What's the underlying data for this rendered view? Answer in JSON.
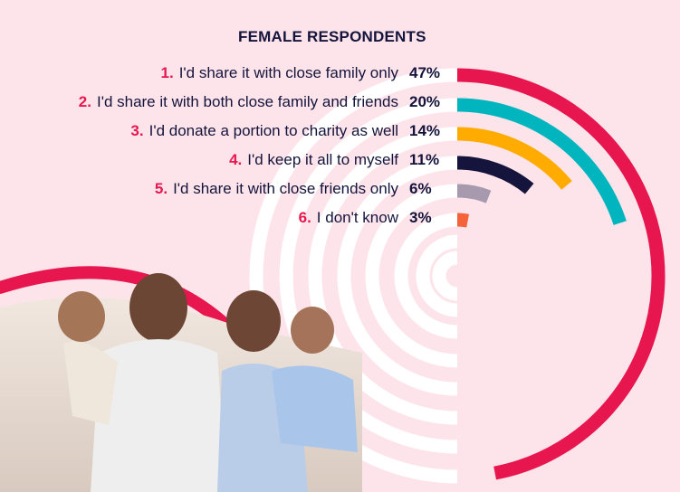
{
  "chart_data": {
    "type": "radial-bar",
    "title": "FEMALE RESPONDENTS",
    "max_value": 50,
    "categories": [
      {
        "rank": "1.",
        "label": "I'd share it with close family only",
        "value": 47,
        "value_label": "47%",
        "color": "#e8164f"
      },
      {
        "rank": "2.",
        "label": "I'd share it with both close family and friends",
        "value": 20,
        "value_label": "20%",
        "color": "#00b5bd"
      },
      {
        "rank": "3.",
        "label": "I'd donate a portion to charity as well",
        "value": 14,
        "value_label": "14%",
        "color": "#ffab00"
      },
      {
        "rank": "4.",
        "label": "I'd keep it all to myself",
        "value": 11,
        "value_label": "11%",
        "color": "#14143c"
      },
      {
        "rank": "5.",
        "label": "I'd share it with close friends only",
        "value": 6,
        "value_label": "6%",
        "color": "#a79aae"
      },
      {
        "rank": "6.",
        "label": "I don't know",
        "value": 3,
        "value_label": "3%",
        "color": "#f4633a"
      }
    ],
    "track_color": "#ffffff"
  },
  "photo": {
    "description_icon": "family-photo"
  }
}
